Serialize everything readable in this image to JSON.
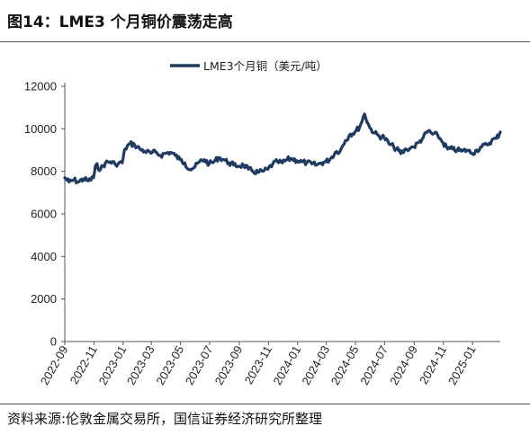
{
  "figure": {
    "title": "图14：LME3 个月铜价震荡走高",
    "source": "资料来源:伦敦金属交易所，国信证券经济研究所整理"
  },
  "colors": {
    "line": "#1f3a60",
    "axis": "#555555"
  },
  "chart_data": {
    "type": "line",
    "title": "",
    "xlabel": "",
    "ylabel": "",
    "ylim": [
      0,
      12000
    ],
    "yticks": [
      0,
      2000,
      4000,
      6000,
      8000,
      10000,
      12000
    ],
    "xlim": [
      "2022-09-01",
      "2025-02-28"
    ],
    "xticks": [
      "2022-09",
      "2022-11",
      "2023-01",
      "2023-03",
      "2023-05",
      "2023-07",
      "2023-09",
      "2023-11",
      "2024-01",
      "2024-03",
      "2024-05",
      "2024-07",
      "2024-09",
      "2024-11",
      "2025-01"
    ],
    "grid": false,
    "legend": "top-center",
    "series": [
      {
        "name": "LME3个月铜（美元/吨）",
        "x": [
          "2022-09-01",
          "2022-09-10",
          "2022-09-20",
          "2022-09-30",
          "2022-10-10",
          "2022-10-20",
          "2022-10-31",
          "2022-11-05",
          "2022-11-15",
          "2022-11-25",
          "2022-12-05",
          "2022-12-15",
          "2022-12-30",
          "2023-01-05",
          "2023-01-15",
          "2023-01-25",
          "2023-02-05",
          "2023-02-15",
          "2023-02-28",
          "2023-03-10",
          "2023-03-20",
          "2023-03-31",
          "2023-04-10",
          "2023-04-20",
          "2023-04-30",
          "2023-05-10",
          "2023-05-20",
          "2023-05-31",
          "2023-06-10",
          "2023-06-20",
          "2023-06-30",
          "2023-07-10",
          "2023-07-20",
          "2023-07-31",
          "2023-08-10",
          "2023-08-20",
          "2023-08-31",
          "2023-09-10",
          "2023-09-20",
          "2023-09-30",
          "2023-10-10",
          "2023-10-20",
          "2023-10-31",
          "2023-11-10",
          "2023-11-20",
          "2023-11-30",
          "2023-12-10",
          "2023-12-20",
          "2023-12-31",
          "2024-01-10",
          "2024-01-20",
          "2024-01-31",
          "2024-02-10",
          "2024-02-20",
          "2024-02-29",
          "2024-03-10",
          "2024-03-20",
          "2024-03-31",
          "2024-04-10",
          "2024-04-20",
          "2024-04-30",
          "2024-05-10",
          "2024-05-20",
          "2024-05-31",
          "2024-06-10",
          "2024-06-20",
          "2024-06-30",
          "2024-07-10",
          "2024-07-20",
          "2024-07-31",
          "2024-08-05",
          "2024-08-15",
          "2024-08-31",
          "2024-09-10",
          "2024-09-20",
          "2024-09-30",
          "2024-10-10",
          "2024-10-20",
          "2024-10-31",
          "2024-11-10",
          "2024-11-20",
          "2024-11-30",
          "2024-12-10",
          "2024-12-20",
          "2024-12-31",
          "2025-01-10",
          "2025-01-20",
          "2025-01-31",
          "2025-02-10",
          "2025-02-20",
          "2025-02-28"
        ],
        "values": [
          7700,
          7500,
          7600,
          7500,
          7650,
          7550,
          7700,
          8300,
          8100,
          8400,
          8450,
          8350,
          8400,
          9050,
          9300,
          9250,
          9050,
          8950,
          8850,
          8900,
          8750,
          8850,
          8900,
          8750,
          8550,
          8400,
          8100,
          8200,
          8450,
          8550,
          8350,
          8450,
          8650,
          8550,
          8400,
          8300,
          8250,
          8300,
          8100,
          8000,
          7950,
          8000,
          8100,
          8350,
          8450,
          8400,
          8550,
          8600,
          8500,
          8450,
          8400,
          8350,
          8300,
          8400,
          8450,
          8600,
          8900,
          9000,
          9450,
          9750,
          9850,
          10100,
          10700,
          10050,
          9800,
          9650,
          9600,
          9300,
          9150,
          8950,
          8850,
          9050,
          9150,
          9350,
          9600,
          9900,
          9750,
          9700,
          9350,
          9050,
          9050,
          9000,
          8950,
          9000,
          8850,
          9000,
          9150,
          9250,
          9450,
          9550,
          9850
        ]
      }
    ]
  }
}
